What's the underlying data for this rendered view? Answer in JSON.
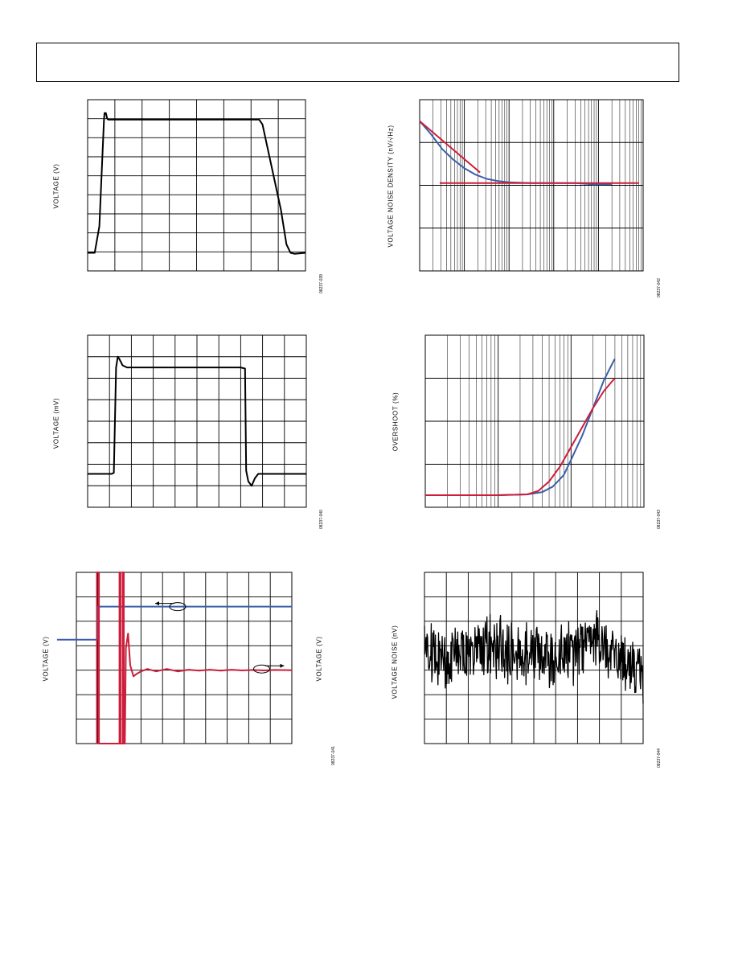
{
  "page": {
    "header_title": ""
  },
  "chart_data": [
    {
      "id": "fig39",
      "type": "line",
      "ylabel": "VOLTAGE (V)",
      "fig_id": "08237-039",
      "grid": true,
      "x_divisions": 8,
      "y_divisions": 9,
      "series": [
        {
          "color": "#000000",
          "points": [
            [
              0,
              0.95
            ],
            [
              0.26,
              0.95
            ],
            [
              0.43,
              2.35
            ],
            [
              0.6,
              7.9
            ],
            [
              0.62,
              8.3
            ],
            [
              0.67,
              8.3
            ],
            [
              0.72,
              8.0
            ],
            [
              0.76,
              7.95
            ],
            [
              1,
              7.95
            ],
            [
              2,
              7.95
            ],
            [
              3,
              7.95
            ],
            [
              4,
              7.95
            ],
            [
              5,
              7.95
            ],
            [
              6,
              7.95
            ],
            [
              6.3,
              7.95
            ],
            [
              6.42,
              7.7
            ],
            [
              7.1,
              3.2
            ],
            [
              7.3,
              1.4
            ],
            [
              7.45,
              0.95
            ],
            [
              7.6,
              0.9
            ],
            [
              8,
              0.95
            ]
          ]
        }
      ]
    },
    {
      "id": "fig42",
      "type": "line",
      "ylabel": "VOLTAGE NOISE DENSITY (nV/√Hz)",
      "fig_id": "08237-042",
      "grid": true,
      "x_decades": 5,
      "y_decades": 4,
      "xscale": "log",
      "yscale": "log",
      "series": [
        {
          "color": "#3a5fa8",
          "points": [
            [
              0,
              3.5
            ],
            [
              0.25,
              3.2
            ],
            [
              0.5,
              2.85
            ],
            [
              0.75,
              2.6
            ],
            [
              1,
              2.4
            ],
            [
              1.25,
              2.25
            ],
            [
              1.5,
              2.15
            ],
            [
              1.75,
              2.1
            ],
            [
              2,
              2.07
            ],
            [
              2.5,
              2.05
            ],
            [
              3,
              2.05
            ],
            [
              3.5,
              2.05
            ],
            [
              3.9,
              2.02
            ],
            [
              4.3,
              2.03
            ]
          ]
        },
        {
          "color": "#cc1d3a",
          "points": [
            [
              0,
              3.5
            ],
            [
              1.35,
              2.3
            ]
          ]
        },
        {
          "color": "#cc1d3a",
          "points": [
            [
              0.45,
              2.05
            ],
            [
              4.9,
              2.05
            ]
          ]
        }
      ]
    },
    {
      "id": "fig40",
      "type": "line",
      "ylabel": "VOLTAGE (mV)",
      "fig_id": "08237-040",
      "grid": true,
      "x_divisions": 10,
      "y_divisions": 8,
      "series": [
        {
          "color": "#000000",
          "points": [
            [
              0,
              1.55
            ],
            [
              1.1,
              1.55
            ],
            [
              1.2,
              1.6
            ],
            [
              1.3,
              6.5
            ],
            [
              1.38,
              7.0
            ],
            [
              1.45,
              6.9
            ],
            [
              1.6,
              6.6
            ],
            [
              1.8,
              6.5
            ],
            [
              2,
              6.5
            ],
            [
              3,
              6.5
            ],
            [
              4,
              6.5
            ],
            [
              5,
              6.5
            ],
            [
              6,
              6.5
            ],
            [
              7,
              6.5
            ],
            [
              7.2,
              6.45
            ],
            [
              7.25,
              1.7
            ],
            [
              7.35,
              1.2
            ],
            [
              7.5,
              1.0
            ],
            [
              7.65,
              1.35
            ],
            [
              7.8,
              1.55
            ],
            [
              10,
              1.55
            ]
          ]
        }
      ]
    },
    {
      "id": "fig43",
      "type": "line",
      "ylabel": "OVERSHOOT (%)",
      "fig_id": "08237-043",
      "grid": true,
      "x_decades": 3,
      "y_divisions": 4,
      "xscale": "log",
      "series": [
        {
          "color": "#3a5fa8",
          "points": [
            [
              0,
              0.28
            ],
            [
              1,
              0.28
            ],
            [
              1.4,
              0.3
            ],
            [
              1.6,
              0.35
            ],
            [
              1.75,
              0.48
            ],
            [
              1.9,
              0.75
            ],
            [
              2,
              1.1
            ],
            [
              2.15,
              1.65
            ],
            [
              2.3,
              2.3
            ],
            [
              2.45,
              2.95
            ],
            [
              2.6,
              3.45
            ]
          ]
        },
        {
          "color": "#cc1d3a",
          "points": [
            [
              0,
              0.28
            ],
            [
              1,
              0.28
            ],
            [
              1.4,
              0.3
            ],
            [
              1.55,
              0.38
            ],
            [
              1.7,
              0.6
            ],
            [
              1.85,
              0.95
            ],
            [
              2,
              1.4
            ],
            [
              2.15,
              1.85
            ],
            [
              2.3,
              2.3
            ],
            [
              2.45,
              2.7
            ],
            [
              2.6,
              3.0
            ]
          ]
        }
      ]
    },
    {
      "id": "fig41",
      "type": "line",
      "ylabel": "VOLTAGE (V)",
      "ylabel_right": "VOLTAGE (V)",
      "fig_id": "08237-041",
      "grid": true,
      "x_divisions": 10,
      "y_divisions": 7,
      "series": [
        {
          "color": "#3a5fa8",
          "points": [
            [
              -0.9,
              4.25
            ],
            [
              -0.1,
              4.25
            ],
            [
              1.0,
              4.25
            ],
            [
              1.02,
              5.6
            ],
            [
              10,
              5.6
            ]
          ]
        },
        {
          "color": "#cc1d3a",
          "points": [
            [
              0.95,
              0
            ],
            [
              0.95,
              7
            ],
            [
              1.05,
              7
            ],
            [
              1.05,
              0
            ],
            [
              2.0,
              0
            ],
            [
              2.0,
              7
            ],
            [
              2.05,
              7
            ],
            [
              2.05,
              0
            ],
            [
              2.15,
              0
            ],
            [
              2.15,
              7
            ],
            [
              2.2,
              7
            ],
            [
              2.2,
              0
            ],
            [
              2.25,
              0
            ],
            [
              2.3,
              3.9
            ],
            [
              2.4,
              4.5
            ],
            [
              2.5,
              3.2
            ],
            [
              2.65,
              2.75
            ],
            [
              2.8,
              2.85
            ],
            [
              3.0,
              2.95
            ],
            [
              3.3,
              3.05
            ],
            [
              3.7,
              2.95
            ],
            [
              4.2,
              3.05
            ],
            [
              4.7,
              2.95
            ],
            [
              5.2,
              3.02
            ],
            [
              5.7,
              2.98
            ],
            [
              6.2,
              3.02
            ],
            [
              6.7,
              2.98
            ],
            [
              7.2,
              3.02
            ],
            [
              7.7,
              2.99
            ],
            [
              8.2,
              3.01
            ],
            [
              8.7,
              2.99
            ],
            [
              9.2,
              3.01
            ],
            [
              10,
              3.0
            ]
          ]
        }
      ],
      "annotations": [
        {
          "kind": "arrow-left",
          "color": "#3a5fa8",
          "x": 4.7,
          "y": 5.6
        },
        {
          "kind": "arrow-right",
          "color": "#cc1d3a",
          "x": 8.6,
          "y": 3.05
        }
      ]
    },
    {
      "id": "fig44",
      "type": "line",
      "ylabel": "VOLTAGE NOISE (nV)",
      "fig_id": "08237-044",
      "grid": true,
      "x_divisions": 10,
      "y_divisions": 7,
      "series": [
        {
          "color": "#000000",
          "noise": true,
          "seed": 44,
          "points": [
            [
              0,
              3.8
            ],
            [
              1,
              3.5
            ],
            [
              2,
              3.6
            ],
            [
              3,
              4.0
            ],
            [
              4,
              3.6
            ],
            [
              5,
              3.9
            ],
            [
              6,
              3.6
            ],
            [
              7,
              3.7
            ],
            [
              7.8,
              4.3
            ],
            [
              8.5,
              3.8
            ],
            [
              9,
              3.4
            ],
            [
              10,
              2.6
            ]
          ]
        }
      ]
    }
  ]
}
